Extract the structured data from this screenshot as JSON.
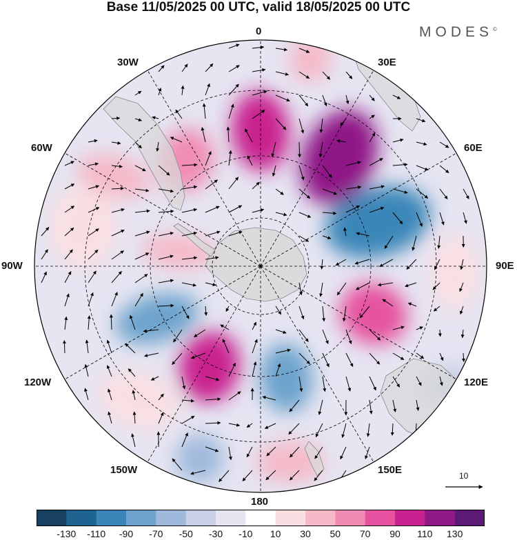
{
  "title": "Base 11/05/2025 00 UTC, valid 18/05/2025 00 UTC",
  "brand": "MODES",
  "brand_mark": "©",
  "longitude_labels": {
    "lon_0": "0",
    "lon_30e": "30E",
    "lon_60e": "60E",
    "lon_90e": "90E",
    "lon_120e": "120E",
    "lon_150e": "150E",
    "lon_180": "180",
    "lon_150w": "150W",
    "lon_120w": "120W",
    "lon_90w": "90W",
    "lon_60w": "60W",
    "lon_30w": "30W"
  },
  "reference_vector": {
    "label": "10",
    "icon": "arrow-right-icon"
  },
  "colorbar": {
    "colors": [
      "#17415f",
      "#1f6491",
      "#3b86b8",
      "#6da3cc",
      "#9fb9dc",
      "#c8cfe6",
      "#e6e5f2",
      "#ffffff",
      "#f9dfe2",
      "#f5b9c8",
      "#f08cb4",
      "#e6529f",
      "#c9218f",
      "#8f1986",
      "#5c1a76"
    ],
    "tick_labels": [
      "-130",
      "-110",
      "-90",
      "-70",
      "-50",
      "-30",
      "-10",
      "10",
      "30",
      "50",
      "70",
      "90",
      "110",
      "130"
    ]
  },
  "colors": {
    "land": "#d8d8d8",
    "vector": "#000000",
    "graticule": "#000000"
  }
}
